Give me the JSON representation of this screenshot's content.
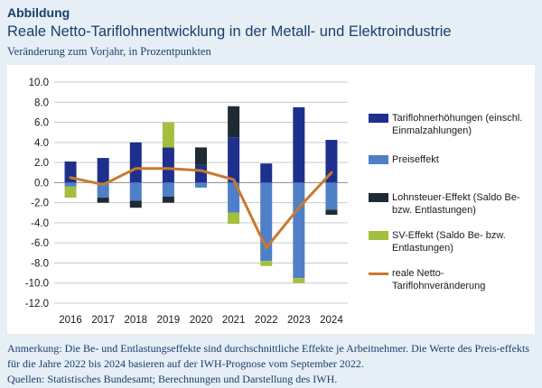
{
  "header": {
    "eyebrow": "Abbildung",
    "title": "Reale Netto-Tariflohnentwicklung in der Metall- und Elektroindustrie",
    "subtitle": "Veränderung zum Vorjahr, in Prozentpunkten"
  },
  "colors": {
    "tarif": "#1f2f8c",
    "preis": "#4f7fc7",
    "lohnsteuer": "#1f2a33",
    "sv": "#a3bf3d",
    "real": "#c87a2d",
    "grid": "#c9c9c9"
  },
  "chart_data": {
    "type": "bar",
    "stacked": true,
    "categories": [
      "2016",
      "2017",
      "2018",
      "2019",
      "2020",
      "2021",
      "2022",
      "2023",
      "2024"
    ],
    "ylim": [
      -12,
      10
    ],
    "yticks": [
      "10.0",
      "8.0",
      "6.0",
      "4.0",
      "2.0",
      "0.0",
      "-2.0",
      "-4.0",
      "-6.0",
      "-8.0",
      "-10.0",
      "-12.0"
    ],
    "grid": true,
    "legend_position": "right",
    "series": [
      {
        "key": "tarif",
        "name": "Tariflohnerhöhungen (einschl. Einmalzahlungen)",
        "type": "bar",
        "values": [
          2.1,
          2.45,
          4.0,
          3.5,
          1.75,
          4.5,
          1.9,
          7.5,
          4.25
        ]
      },
      {
        "key": "preis",
        "name": "Preiseffekt",
        "type": "bar",
        "values": [
          -0.4,
          -1.5,
          -1.8,
          -1.4,
          -0.5,
          -3.0,
          -7.8,
          -9.5,
          -2.7
        ]
      },
      {
        "key": "lohnsteuer",
        "name": "Lohnsteuer-Effekt (Saldo Be- bzw. Entlastungen)",
        "type": "bar",
        "values": [
          0.0,
          -0.5,
          -0.7,
          -0.6,
          1.75,
          3.1,
          0.0,
          0.0,
          -0.5
        ]
      },
      {
        "key": "sv",
        "name": "SV-Effekt (Saldo Be- bzw. Entlastungen)",
        "type": "bar",
        "values": [
          -1.1,
          0.0,
          0.0,
          2.5,
          0.0,
          -1.1,
          -0.5,
          -0.5,
          0.0
        ]
      },
      {
        "key": "real",
        "name": "reale Netto-Tariflohnveränderung",
        "type": "line",
        "values": [
          0.5,
          -0.2,
          1.4,
          1.4,
          1.2,
          0.3,
          -6.5,
          -2.5,
          1.0
        ]
      }
    ]
  },
  "legend": [
    {
      "key": "tarif",
      "label": "Tariflohnerhöhungen (einschl. Einmalzahlungen)",
      "kind": "bar"
    },
    {
      "key": "preis",
      "label": "Preiseffekt",
      "kind": "bar"
    },
    {
      "key": "lohnsteuer",
      "label": "Lohnsteuer-Effekt (Saldo Be- bzw. Entlastungen)",
      "kind": "bar"
    },
    {
      "key": "sv",
      "label": "SV-Effekt (Saldo Be- bzw. Entlastungen)",
      "kind": "bar"
    },
    {
      "key": "real",
      "label": "reale Netto-Tariflohnveränderung",
      "kind": "line"
    }
  ],
  "notes": {
    "remark": "Anmerkung: Die Be- und Entlastungseffekte sind durchschnittliche Effekte je Arbeitnehmer. Die Werte des Preis-effekts für die Jahre 2022 bis 2024 basieren auf der IWH-Prognose vom September 2022.",
    "sources": "Quellen: Statistisches Bundesamt; Berechnungen und Darstellung des IWH."
  }
}
